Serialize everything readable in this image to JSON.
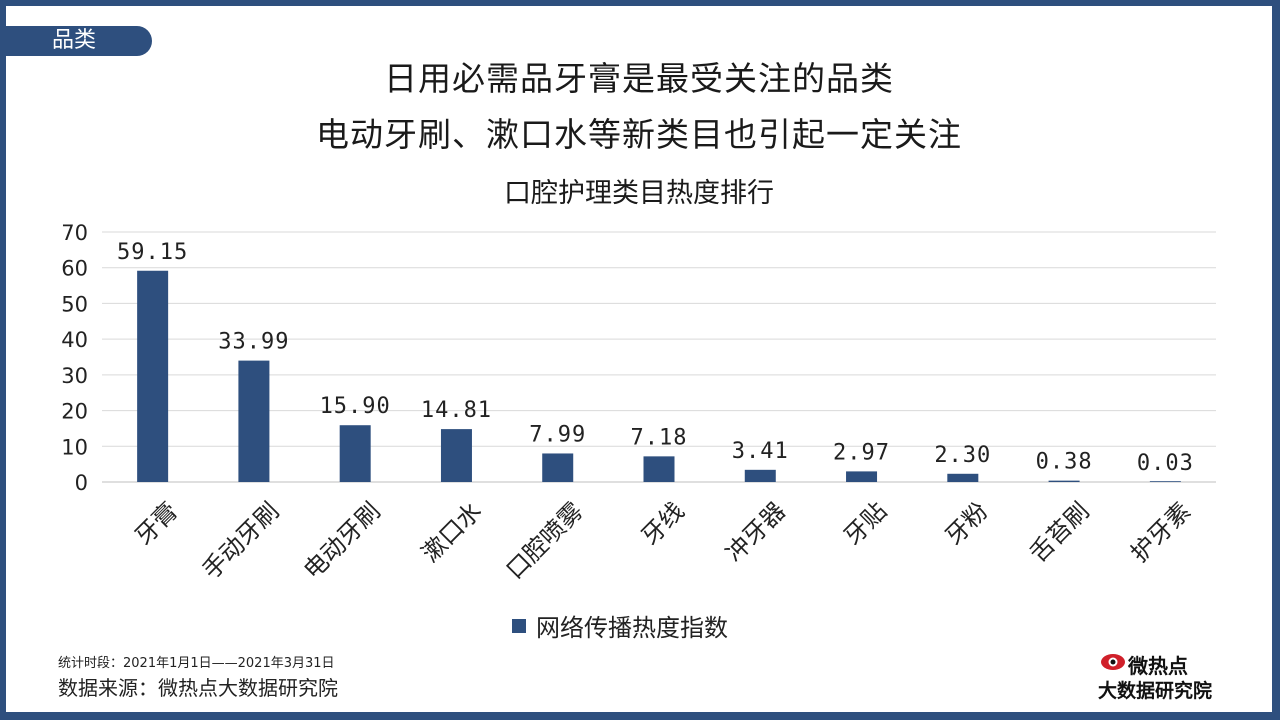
{
  "section_tag": "品类",
  "headline_line1": "日用必需品牙膏是最受关注的品类",
  "headline_line2": "电动牙刷、漱口水等新类目也引起一定关注",
  "footnote_period": "统计时段：2021年1月1日——2021年3月31日",
  "footnote_source": "数据来源：微热点大数据研究院",
  "logo": {
    "line1": "微热点",
    "line2": "大数据研究院",
    "icon": "eye-logo-icon",
    "color": "#d0202a"
  },
  "colors": {
    "bar": "#2e4f7e",
    "grid": "#d9d9d9",
    "frame": "#2e4f7e"
  },
  "chart_data": {
    "type": "bar",
    "title": "口腔护理类目热度排行",
    "categories": [
      "牙膏",
      "手动牙刷",
      "电动牙刷",
      "漱口水",
      "口腔喷雾",
      "牙线",
      "冲牙器",
      "牙贴",
      "牙粉",
      "舌苔刷",
      "护牙素"
    ],
    "series": [
      {
        "name": "网络传播热度指数",
        "values": [
          59.15,
          33.99,
          15.9,
          14.81,
          7.99,
          7.18,
          3.41,
          2.97,
          2.3,
          0.38,
          0.03
        ],
        "labels": [
          "59.15",
          "33.99",
          "15.90",
          "14.81",
          "7.99",
          "7.18",
          "3.41",
          "2.97",
          "2.30",
          "0.38",
          "0.03"
        ]
      }
    ],
    "ylim": [
      0,
      70
    ],
    "yticks": [
      "0",
      "10",
      "20",
      "30",
      "40",
      "50",
      "60",
      "70"
    ],
    "grid": true,
    "legend": "bottom"
  }
}
